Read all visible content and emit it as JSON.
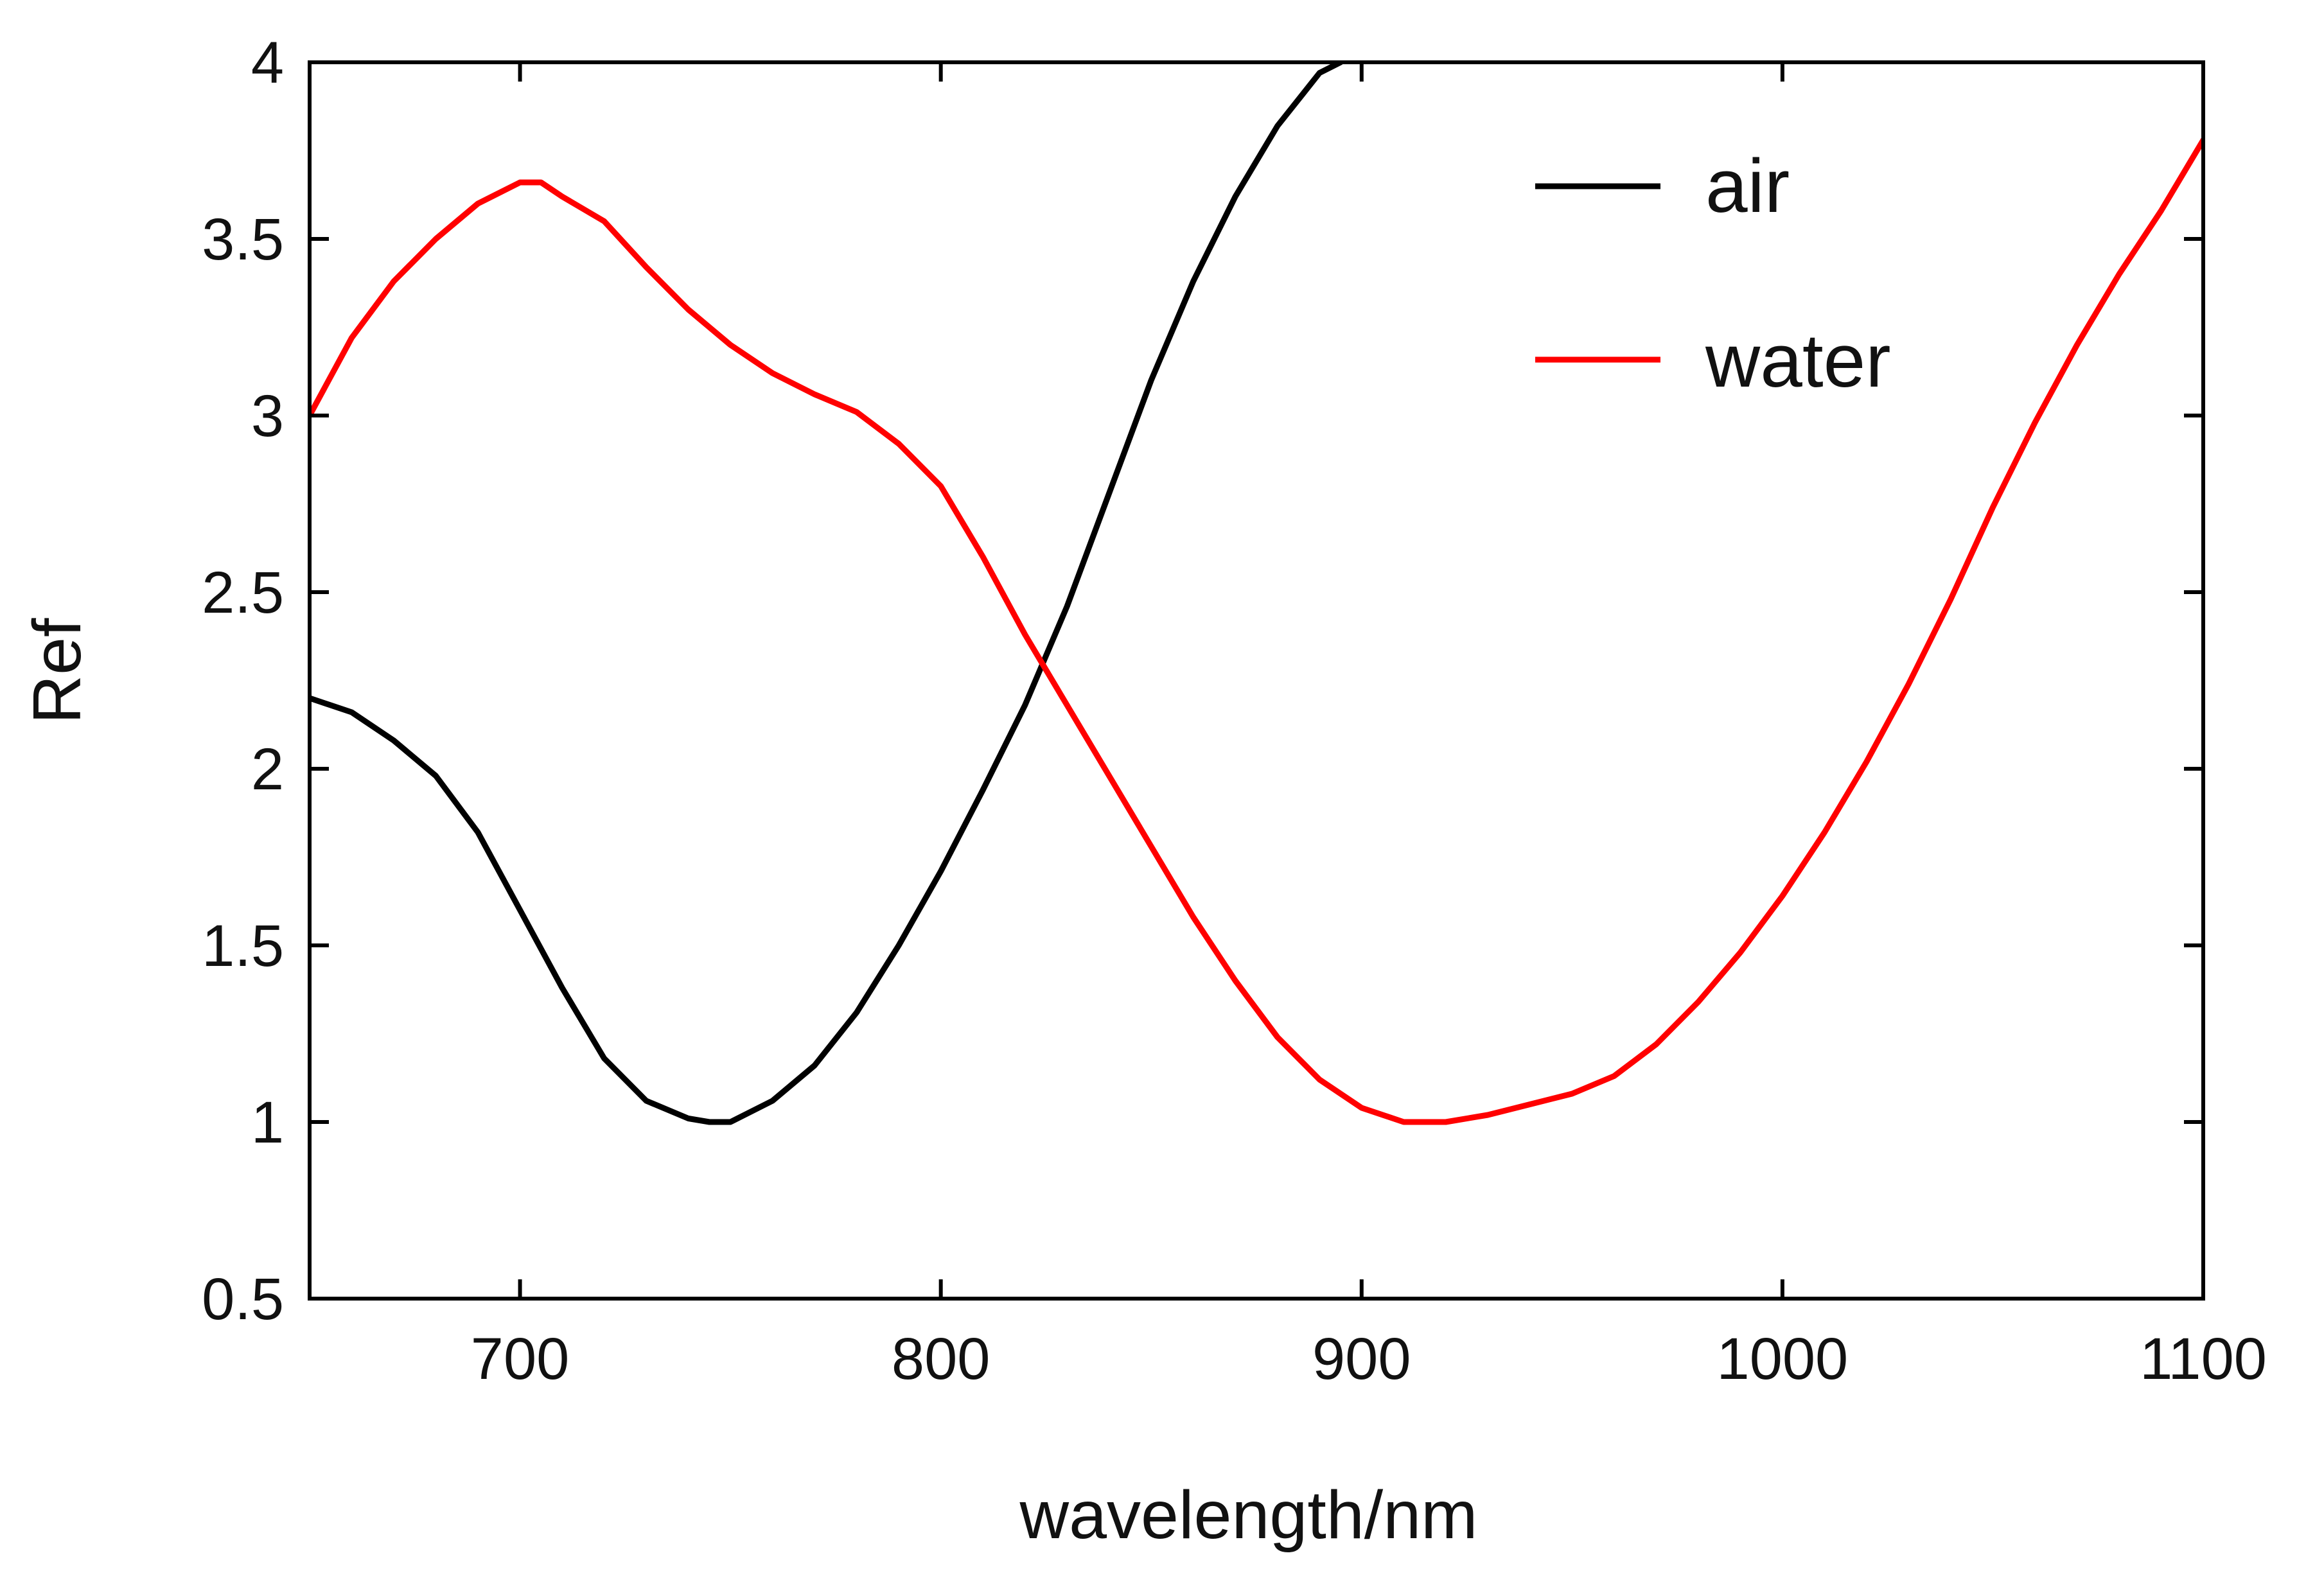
{
  "chart_data": {
    "type": "line",
    "title": "",
    "xlabel": "wavelength/nm",
    "ylabel": "Ref",
    "xlim": [
      650,
      1100
    ],
    "ylim": [
      0.5,
      4
    ],
    "xticks": [
      700,
      800,
      900,
      1000,
      1100
    ],
    "yticks": [
      0.5,
      1,
      1.5,
      2,
      2.5,
      3,
      3.5,
      4
    ],
    "xtick_labels": [
      "700",
      "800",
      "900",
      "1000",
      "1100"
    ],
    "ytick_labels": [
      "0.5",
      "1",
      "1.5",
      "2",
      "2.5",
      "3",
      "3.5",
      "4"
    ],
    "grid": false,
    "legend_position": "top-right",
    "series": [
      {
        "name": "air",
        "color": "#000000",
        "points": [
          [
            650,
            2.2
          ],
          [
            660,
            2.16
          ],
          [
            670,
            2.08
          ],
          [
            680,
            1.98
          ],
          [
            690,
            1.82
          ],
          [
            700,
            1.6
          ],
          [
            710,
            1.38
          ],
          [
            720,
            1.18
          ],
          [
            730,
            1.06
          ],
          [
            740,
            1.01
          ],
          [
            745,
            1.0
          ],
          [
            750,
            1.0
          ],
          [
            760,
            1.06
          ],
          [
            770,
            1.16
          ],
          [
            780,
            1.31
          ],
          [
            790,
            1.5
          ],
          [
            800,
            1.71
          ],
          [
            810,
            1.94
          ],
          [
            820,
            2.18
          ],
          [
            830,
            2.46
          ],
          [
            840,
            2.78
          ],
          [
            850,
            3.1
          ],
          [
            860,
            3.38
          ],
          [
            870,
            3.62
          ],
          [
            880,
            3.82
          ],
          [
            890,
            3.97
          ],
          [
            895,
            4.0
          ]
        ]
      },
      {
        "name": "water",
        "color": "#ff0000",
        "points": [
          [
            650,
            3.0
          ],
          [
            660,
            3.22
          ],
          [
            670,
            3.38
          ],
          [
            680,
            3.5
          ],
          [
            690,
            3.6
          ],
          [
            700,
            3.66
          ],
          [
            705,
            3.66
          ],
          [
            710,
            3.62
          ],
          [
            720,
            3.55
          ],
          [
            730,
            3.42
          ],
          [
            740,
            3.3
          ],
          [
            750,
            3.2
          ],
          [
            760,
            3.12
          ],
          [
            770,
            3.06
          ],
          [
            780,
            3.01
          ],
          [
            790,
            2.92
          ],
          [
            800,
            2.8
          ],
          [
            810,
            2.6
          ],
          [
            820,
            2.38
          ],
          [
            830,
            2.18
          ],
          [
            840,
            1.98
          ],
          [
            850,
            1.78
          ],
          [
            860,
            1.58
          ],
          [
            870,
            1.4
          ],
          [
            880,
            1.24
          ],
          [
            890,
            1.12
          ],
          [
            900,
            1.04
          ],
          [
            910,
            1.0
          ],
          [
            920,
            1.0
          ],
          [
            930,
            1.02
          ],
          [
            940,
            1.05
          ],
          [
            950,
            1.08
          ],
          [
            960,
            1.13
          ],
          [
            970,
            1.22
          ],
          [
            980,
            1.34
          ],
          [
            990,
            1.48
          ],
          [
            1000,
            1.64
          ],
          [
            1010,
            1.82
          ],
          [
            1020,
            2.02
          ],
          [
            1030,
            2.24
          ],
          [
            1040,
            2.48
          ],
          [
            1050,
            2.74
          ],
          [
            1060,
            2.98
          ],
          [
            1070,
            3.2
          ],
          [
            1080,
            3.4
          ],
          [
            1090,
            3.58
          ],
          [
            1100,
            3.78
          ]
        ]
      }
    ]
  }
}
